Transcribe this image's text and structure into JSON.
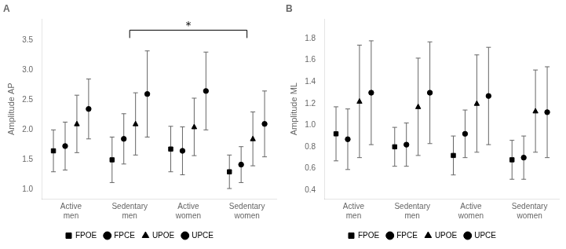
{
  "chart_data": [
    {
      "type": "errorbar",
      "title": "A",
      "categories": [
        "Active\nmen",
        "Sedentary\nmen",
        "Active\nwomen",
        "Sedentary\nwomen"
      ],
      "series": [
        {
          "name": "FPOE",
          "color": "black",
          "marker": "square",
          "values": [
            1.65,
            1.5,
            1.68,
            1.3
          ],
          "errors": [
            0.35,
            0.38,
            0.38,
            0.28
          ]
        },
        {
          "name": "FPCE",
          "color": "black",
          "marker": "circle",
          "values": [
            1.73,
            1.85,
            1.65,
            1.42
          ],
          "errors": [
            0.4,
            0.42,
            0.4,
            0.3
          ]
        },
        {
          "name": "UPOE",
          "color": "black",
          "marker": "triangle",
          "values": [
            2.1,
            2.1,
            2.05,
            1.85
          ],
          "errors": [
            0.48,
            0.52,
            0.48,
            0.45
          ]
        },
        {
          "name": "UPCE",
          "color": "black",
          "marker": "circle",
          "values": [
            2.35,
            2.6,
            2.65,
            2.1
          ],
          "errors": [
            0.5,
            0.72,
            0.65,
            0.55
          ]
        }
      ],
      "ylabel": "Amplitude AP",
      "ylim": [
        0.85,
        3.85
      ],
      "yticks": [
        {
          "value": 1.0,
          "label": "1.0"
        },
        1.5,
        {
          "value": 2.0,
          "label": "2.0"
        },
        2.5,
        {
          "value": 3.0,
          "label": "3.0"
        },
        3.5
      ],
      "grid": false,
      "legend": "bottom",
      "annotations": [
        {
          "text": "*",
          "from": "Sedentary\nmen",
          "to": "Sedentary\nwomen"
        }
      ]
    },
    {
      "type": "errorbar",
      "title": "B",
      "categories": [
        "Active\nmen",
        "Sedentary\nmen",
        "Active\nwomen",
        "Sedentary\nwomen"
      ],
      "series": [
        {
          "name": "FPOE",
          "color": "black",
          "marker": "square",
          "values": [
            0.92,
            0.8,
            0.72,
            0.68
          ],
          "errors": [
            0.25,
            0.18,
            0.18,
            0.18
          ]
        },
        {
          "name": "FPCE",
          "color": "black",
          "marker": "circle",
          "values": [
            0.87,
            0.82,
            0.92,
            0.7
          ],
          "errors": [
            0.28,
            0.2,
            0.22,
            0.2
          ]
        },
        {
          "name": "UPOE",
          "color": "black",
          "marker": "triangle",
          "values": [
            1.22,
            1.17,
            1.2,
            1.13
          ],
          "errors": [
            0.52,
            0.45,
            0.45,
            0.38
          ]
        },
        {
          "name": "UPCE",
          "color": "black",
          "marker": "circle",
          "values": [
            1.3,
            1.3,
            1.27,
            1.12
          ],
          "errors": [
            0.48,
            0.47,
            0.45,
            0.42
          ]
        }
      ],
      "ylabel": "Amplitude ML",
      "ylim": [
        0.32,
        1.98
      ],
      "yticks": [
        0.4,
        0.6,
        0.8,
        {
          "value": 1.0,
          "label": "1.0"
        },
        1.2,
        1.4,
        1.6,
        1.8
      ],
      "grid": false,
      "legend": "bottom"
    }
  ]
}
